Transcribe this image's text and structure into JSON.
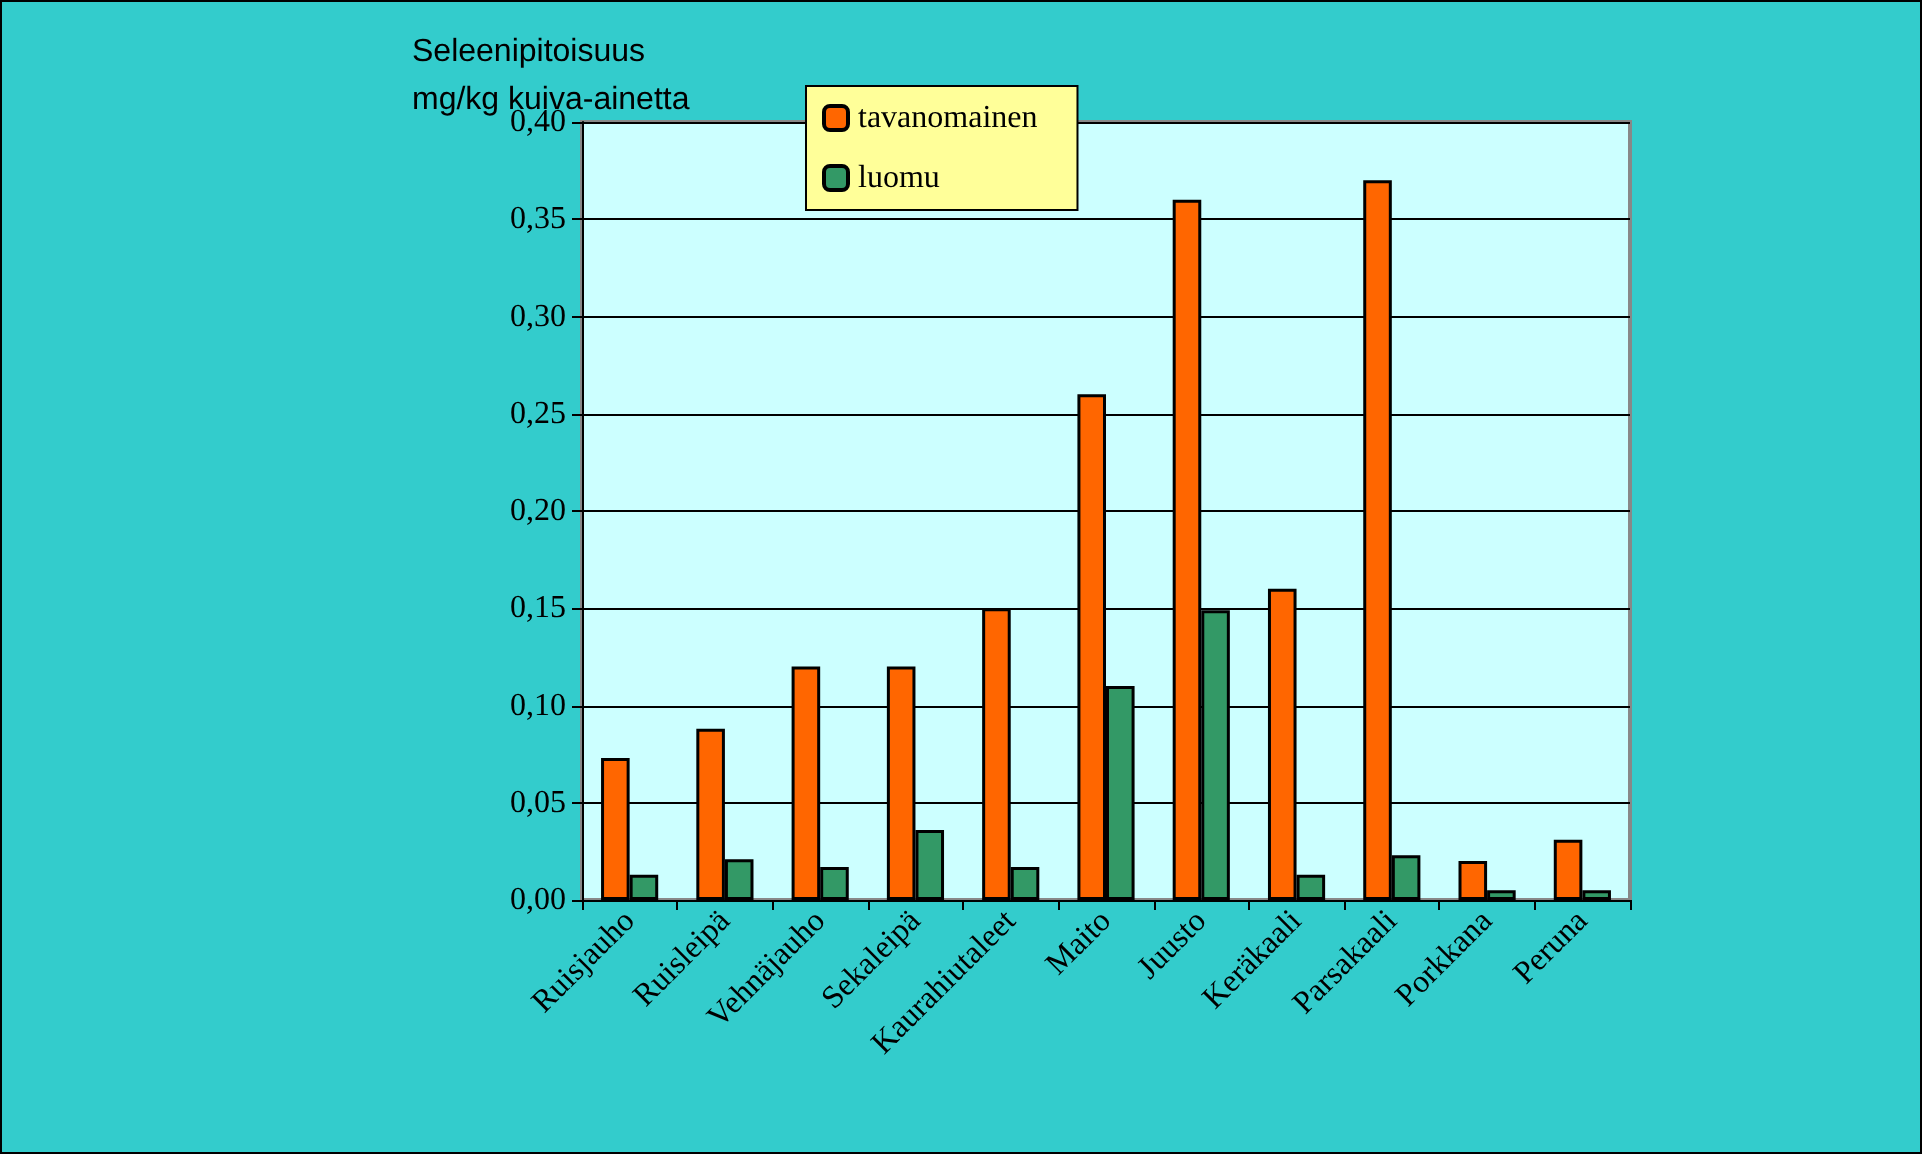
{
  "chart_data": {
    "type": "bar",
    "ylabel": "Seleenipitoisuus\nmg/kg kuiva-ainetta",
    "categories": [
      "Ruisjauho",
      "Ruisleipä",
      "Vehnäjauho",
      "Sekaleipä",
      "Kaurahiutaleet",
      "Maito",
      "Juusto",
      "Keräkaali",
      "Parsakaali",
      "Porkkana",
      "Peruna"
    ],
    "series": [
      {
        "name": "tavanomainen",
        "color": "#ff6600",
        "values": [
          0.073,
          0.088,
          0.12,
          0.12,
          0.15,
          0.26,
          0.36,
          0.16,
          0.37,
          0.02,
          0.031
        ]
      },
      {
        "name": "luomu",
        "color": "#339966",
        "values": [
          0.013,
          0.021,
          0.017,
          0.036,
          0.017,
          0.11,
          0.149,
          0.013,
          0.023,
          0.005,
          0.005
        ]
      }
    ],
    "ylim": [
      0,
      0.4
    ],
    "yticks": [
      {
        "value": 0,
        "label": "0,00"
      },
      {
        "value": 0.05,
        "label": "0,05"
      },
      {
        "value": 0.1,
        "label": "0,10"
      },
      {
        "value": 0.15,
        "label": "0,15"
      },
      {
        "value": 0.2,
        "label": "0,20"
      },
      {
        "value": 0.25,
        "label": "0,25"
      },
      {
        "value": 0.3,
        "label": "0,30"
      },
      {
        "value": 0.35,
        "label": "0,35"
      },
      {
        "value": 0.4,
        "label": "0,40"
      }
    ],
    "grid": "y",
    "legend": "top"
  }
}
